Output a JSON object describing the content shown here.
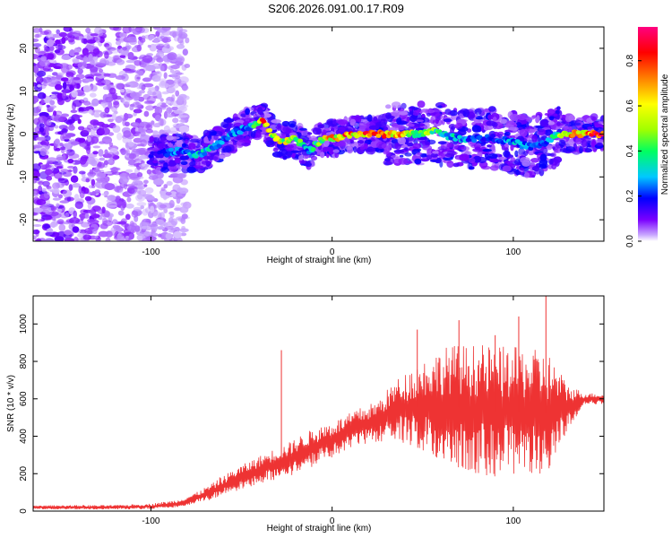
{
  "title": "S206.2026.091.00.17.R09",
  "chart_data": [
    {
      "type": "heatmap",
      "xlabel": "Height of straight line (km)",
      "ylabel": "Frequency (Hz)",
      "xlim": [
        -165,
        150
      ],
      "ylim": [
        -25,
        25
      ],
      "x_ticks": [
        -100,
        0,
        100
      ],
      "y_ticks": [
        -20,
        -10,
        0,
        10,
        20
      ],
      "colorbar": {
        "label": "Normalized spectral amplitude",
        "range": [
          0,
          0.95
        ],
        "ticks": [
          "0.0",
          "0.2",
          "0.4",
          "0.6",
          "0.8"
        ],
        "colormap": [
          "#ffffff",
          "#c8a6ff",
          "#7a00ff",
          "#0000ff",
          "#00c8ff",
          "#00ff60",
          "#a0ff00",
          "#ffff00",
          "#ff8000",
          "#ff0000",
          "#ff0080"
        ]
      },
      "ridge": {
        "x": [
          -100,
          -85,
          -75,
          -65,
          -55,
          -45,
          -38,
          -33,
          -28,
          -22,
          -18,
          -13,
          -8,
          -3,
          3,
          10,
          15,
          20,
          30,
          40,
          50,
          55,
          60,
          70,
          80,
          90,
          100,
          110,
          118,
          125,
          135,
          148
        ],
        "freq": [
          -5,
          -4,
          -5,
          -3,
          0,
          2,
          3,
          0,
          -2,
          -1,
          -2,
          -4,
          -2,
          -1,
          -1,
          0,
          0,
          0,
          0,
          0,
          0,
          1,
          0,
          -1,
          -1,
          -1,
          -2,
          -3,
          -2,
          0,
          0,
          0
        ],
        "amplitude": [
          0.2,
          0.3,
          0.45,
          0.35,
          0.3,
          0.35,
          0.9,
          0.6,
          0.7,
          0.65,
          0.55,
          0.3,
          0.6,
          0.75,
          0.85,
          0.9,
          0.75,
          0.95,
          0.95,
          0.75,
          0.6,
          0.65,
          0.45,
          0.35,
          0.3,
          0.25,
          0.35,
          0.3,
          0.25,
          0.6,
          0.9,
          0.95
        ]
      }
    },
    {
      "type": "line",
      "xlabel": "Height of straight line (km)",
      "ylabel": "SNR (10 * v/v)",
      "xlim": [
        -165,
        150
      ],
      "ylim": [
        0,
        1150
      ],
      "x_ticks": [
        -100,
        0,
        100
      ],
      "y_ticks": [
        0,
        200,
        400,
        600,
        800,
        1000
      ],
      "series": [
        {
          "color": "#ee3333",
          "envelope": {
            "x": [
              -165,
              -140,
              -120,
              -100,
              -85,
              -75,
              -65,
              -55,
              -45,
              -35,
              -25,
              -15,
              -5,
              5,
              15,
              25,
              35,
              50,
              65,
              80,
              95,
              110,
              120,
              130,
              140,
              150
            ],
            "mean": [
              20,
              20,
              20,
              25,
              40,
              70,
              110,
              160,
              200,
              240,
              270,
              320,
              360,
              400,
              450,
              480,
              540,
              560,
              560,
              540,
              530,
              530,
              520,
              560,
              600,
              600
            ],
            "spread": [
              10,
              12,
              12,
              15,
              20,
              30,
              45,
              60,
              70,
              80,
              90,
              100,
              100,
              100,
              100,
              110,
              160,
              250,
              330,
              350,
              350,
              340,
              320,
              120,
              30,
              30
            ]
          },
          "spikes": [
            {
              "x": -28,
              "y": 860
            },
            {
              "x": -62,
              "y": 180
            },
            {
              "x": 47,
              "y": 970
            },
            {
              "x": 70,
              "y": 1020
            },
            {
              "x": 90,
              "y": 940
            },
            {
              "x": 103,
              "y": 1040
            },
            {
              "x": 118,
              "y": 1160
            }
          ]
        }
      ]
    }
  ]
}
